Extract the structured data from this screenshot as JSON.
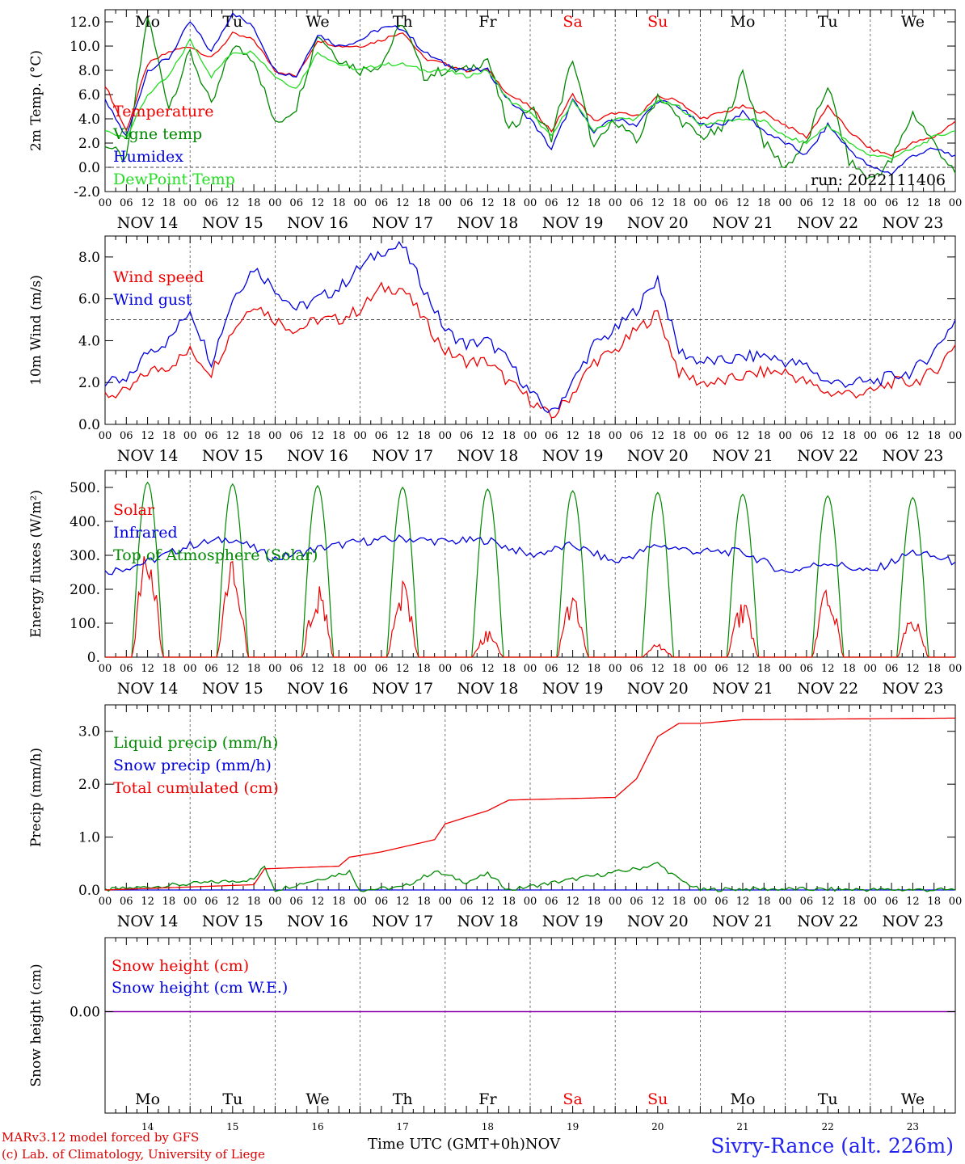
{
  "colors": {
    "red": "#ee0000",
    "green": "#008800",
    "blue": "#0000dd",
    "lightgreen": "#22dd22",
    "purple": "#8800aa",
    "footer_red": "#dd0000",
    "location_blue": "#2222ee"
  },
  "days": [
    "Mo",
    "Tu",
    "We",
    "Th",
    "Fr",
    "Sa",
    "Su",
    "Mo",
    "Tu",
    "We"
  ],
  "day_colors": [
    "black",
    "black",
    "black",
    "black",
    "black",
    "red",
    "red",
    "black",
    "black",
    "black"
  ],
  "dates": [
    "NOV 14",
    "NOV 15",
    "NOV 16",
    "NOV 17",
    "NOV 18",
    "NOV 19",
    "NOV 20",
    "NOV 21",
    "NOV 22",
    "NOV 23"
  ],
  "date_numbers": [
    "14",
    "15",
    "16",
    "17",
    "18",
    "19",
    "20",
    "21",
    "22",
    "23"
  ],
  "hour_ticks": [
    "00",
    "06",
    "12",
    "18"
  ],
  "final_tick": "00",
  "footer": {
    "model": "MARv3.12 model forced by GFS",
    "lab": "(c) Lab. of Climatology, University of Liege",
    "xlabel": "Time UTC (GMT+0h)",
    "month": "NOV",
    "location": "Sivry-Rance (alt. 226m)"
  },
  "chart_data": [
    {
      "type": "line",
      "ylabel": "2m Temp. (°C)",
      "ylim": [
        -2,
        13
      ],
      "yticks": [
        "-2.0",
        "0.0",
        "2.0",
        "4.0",
        "6.0",
        "8.0",
        "10.0",
        "12.0"
      ],
      "reference_line": 0,
      "annotation": "run: 2022111406",
      "x": [
        "11-14 00",
        "11-14 06",
        "11-14 12",
        "11-14 18",
        "11-15 00",
        "11-15 06",
        "11-15 12",
        "11-15 18",
        "11-16 00",
        "11-16 06",
        "11-16 12",
        "11-16 18",
        "11-17 00",
        "11-17 06",
        "11-17 12",
        "11-17 18",
        "11-18 00",
        "11-18 06",
        "11-18 12",
        "11-18 18",
        "11-19 00",
        "11-19 06",
        "11-19 12",
        "11-19 18",
        "11-20 00",
        "11-20 06",
        "11-20 12",
        "11-20 18",
        "11-21 00",
        "11-21 06",
        "11-21 12",
        "11-21 18",
        "11-22 00",
        "11-22 06",
        "11-22 12",
        "11-22 18",
        "11-23 00",
        "11-23 06",
        "11-23 12",
        "11-23 18",
        "11-24 00"
      ],
      "series": [
        {
          "name": "Temperature",
          "color": "red",
          "values": [
            6.8,
            3.0,
            8.5,
            9.5,
            10.0,
            9.0,
            11.0,
            10.5,
            8.0,
            7.5,
            10.5,
            10.0,
            10.0,
            10.5,
            11.2,
            9.0,
            8.5,
            8.0,
            8.0,
            6.0,
            5.0,
            3.0,
            6.0,
            3.8,
            4.5,
            4.2,
            5.8,
            5.5,
            4.0,
            4.5,
            5.0,
            4.5,
            3.5,
            2.5,
            5.0,
            3.0,
            1.5,
            1.0,
            2.0,
            2.5,
            3.8
          ]
        },
        {
          "name": "Vigne temp",
          "color": "green",
          "values": [
            2.0,
            0.5,
            12.5,
            5.0,
            9.5,
            5.0,
            10.0,
            9.0,
            3.5,
            5.0,
            11.0,
            9.0,
            8.0,
            8.5,
            12.0,
            7.5,
            8.0,
            8.0,
            9.0,
            3.0,
            5.0,
            2.5,
            9.0,
            1.5,
            4.0,
            2.0,
            6.0,
            4.0,
            2.5,
            3.0,
            7.8,
            2.0,
            0.0,
            2.0,
            6.8,
            0.5,
            -1.0,
            0.5,
            4.5,
            2.0,
            -0.5
          ]
        },
        {
          "name": "Humidex",
          "color": "blue",
          "values": [
            5.5,
            2.5,
            8.0,
            9.0,
            12.0,
            9.5,
            12.8,
            11.5,
            8.0,
            7.5,
            11.0,
            10.0,
            10.5,
            11.5,
            11.5,
            9.5,
            8.5,
            8.0,
            8.0,
            5.5,
            4.0,
            1.5,
            5.5,
            3.0,
            4.0,
            3.5,
            5.5,
            5.0,
            3.5,
            3.5,
            4.5,
            3.0,
            2.0,
            1.0,
            3.5,
            1.5,
            0.0,
            -0.5,
            1.0,
            1.5,
            1.0
          ]
        },
        {
          "name": "DewPoint Temp",
          "color": "lightgreen",
          "values": [
            3.0,
            2.5,
            6.0,
            7.5,
            10.5,
            7.5,
            9.5,
            9.5,
            7.5,
            6.5,
            9.5,
            8.5,
            8.0,
            8.5,
            8.5,
            8.0,
            8.0,
            7.5,
            8.0,
            5.5,
            4.5,
            2.5,
            5.5,
            3.0,
            4.0,
            4.0,
            5.5,
            5.0,
            3.5,
            3.8,
            4.0,
            3.8,
            2.5,
            2.0,
            3.5,
            2.0,
            1.0,
            0.8,
            1.5,
            2.5,
            3.0
          ]
        }
      ]
    },
    {
      "type": "line",
      "ylabel": "10m Wind (m/s)",
      "ylim": [
        0,
        9
      ],
      "yticks": [
        "0.0",
        "2.0",
        "4.0",
        "6.0",
        "8.0"
      ],
      "reference_line": 5,
      "x": [
        "11-14 00",
        "11-14 06",
        "11-14 12",
        "11-14 18",
        "11-15 00",
        "11-15 06",
        "11-15 12",
        "11-15 18",
        "11-16 00",
        "11-16 06",
        "11-16 12",
        "11-16 18",
        "11-17 00",
        "11-17 06",
        "11-17 12",
        "11-17 18",
        "11-18 00",
        "11-18 06",
        "11-18 12",
        "11-18 18",
        "11-19 00",
        "11-19 06",
        "11-19 12",
        "11-19 18",
        "11-20 00",
        "11-20 06",
        "11-20 12",
        "11-20 18",
        "11-21 00",
        "11-21 06",
        "11-21 12",
        "11-21 18",
        "11-22 00",
        "11-22 06",
        "11-22 12",
        "11-22 18",
        "11-23 00",
        "11-23 06",
        "11-23 12",
        "11-23 18",
        "11-24 00"
      ],
      "series": [
        {
          "name": "Wind speed",
          "color": "red",
          "values": [
            1.4,
            1.5,
            2.5,
            2.8,
            3.5,
            2.5,
            4.5,
            5.8,
            5.0,
            4.5,
            5.0,
            5.0,
            5.5,
            6.5,
            6.5,
            5.0,
            3.5,
            3.0,
            3.0,
            2.0,
            1.2,
            0.3,
            1.5,
            3.0,
            3.5,
            4.5,
            5.3,
            2.5,
            2.0,
            2.0,
            2.3,
            2.5,
            2.5,
            2.0,
            1.5,
            1.5,
            1.5,
            2.0,
            2.0,
            2.5,
            3.8
          ]
        },
        {
          "name": "Wind gust",
          "color": "blue",
          "values": [
            2.0,
            2.0,
            3.5,
            4.0,
            5.5,
            3.0,
            6.0,
            7.5,
            6.5,
            5.5,
            6.0,
            6.5,
            7.5,
            8.3,
            8.5,
            6.5,
            4.5,
            3.8,
            4.0,
            3.0,
            1.5,
            0.5,
            2.0,
            3.8,
            4.5,
            5.5,
            7.0,
            3.5,
            3.0,
            3.0,
            3.2,
            3.3,
            3.0,
            2.8,
            2.0,
            2.0,
            2.0,
            2.3,
            2.5,
            3.5,
            5.0
          ]
        }
      ]
    },
    {
      "type": "line",
      "ylabel": "Energy fluxes (W/m²)",
      "ylim": [
        0,
        550
      ],
      "yticks": [
        "0.",
        "100.",
        "200.",
        "300.",
        "400.",
        "500."
      ],
      "solar_noon_hour": 12,
      "series": [
        {
          "name": "Solar",
          "color": "red",
          "daily_peak": [
            330,
            290,
            220,
            230,
            80,
            190,
            40,
            170,
            205,
            120
          ]
        },
        {
          "name": "Infrared",
          "color": "blue",
          "x": [
            "11-14 00",
            "11-14 12",
            "11-15 00",
            "11-15 12",
            "11-16 00",
            "11-16 12",
            "11-17 00",
            "11-17 12",
            "11-18 00",
            "11-18 12",
            "11-19 00",
            "11-19 12",
            "11-20 00",
            "11-20 12",
            "11-21 00",
            "11-21 12",
            "11-22 00",
            "11-22 12",
            "11-23 00",
            "11-23 12",
            "11-24 00"
          ],
          "values": [
            250,
            280,
            330,
            350,
            290,
            320,
            340,
            350,
            340,
            345,
            300,
            330,
            280,
            330,
            310,
            310,
            250,
            280,
            250,
            310,
            280
          ]
        },
        {
          "name": "Top of Atmosphere (Solar)",
          "color": "green",
          "daily_peak": [
            515,
            510,
            505,
            500,
            495,
            490,
            485,
            480,
            475,
            470
          ]
        }
      ]
    },
    {
      "type": "line",
      "ylabel": "Precip (mm/h)",
      "ylim": [
        0,
        3.5
      ],
      "yticks": [
        "0.0",
        "1.0",
        "2.0",
        "3.0"
      ],
      "series": [
        {
          "name": "Liquid precip (mm/h)",
          "color": "green",
          "x": [
            "11-14 00",
            "11-15 18",
            "11-15 21",
            "11-16 00",
            "11-16 21",
            "11-17 00",
            "11-17 12",
            "11-17 21",
            "11-18 06",
            "11-18 12",
            "11-18 18",
            "11-20 06",
            "11-20 12",
            "11-20 18",
            "11-21 00",
            "11-21 12",
            "11-24 00"
          ],
          "values": [
            0,
            0.2,
            0.45,
            0,
            0.35,
            0,
            0.05,
            0.35,
            0.15,
            0.3,
            0,
            0.4,
            0.5,
            0.2,
            0,
            0.02,
            0
          ]
        },
        {
          "name": "Snow precip (mm/h)",
          "color": "blue",
          "x": [
            "11-14 00",
            "11-24 00"
          ],
          "values": [
            0,
            0
          ]
        },
        {
          "name": "Total cumulated (cm)",
          "color": "red",
          "x": [
            "11-14 00",
            "11-14 21",
            "11-15 18",
            "11-15 21",
            "11-16 18",
            "11-16 21",
            "11-17 06",
            "11-17 21",
            "11-18 00",
            "11-18 12",
            "11-18 18",
            "11-19 12",
            "11-20 00",
            "11-20 06",
            "11-20 12",
            "11-20 18",
            "11-21 00",
            "11-21 12",
            "11-24 00"
          ],
          "values": [
            0,
            0.05,
            0.1,
            0.4,
            0.45,
            0.62,
            0.72,
            0.95,
            1.25,
            1.5,
            1.7,
            1.73,
            1.75,
            2.1,
            2.9,
            3.15,
            3.15,
            3.22,
            3.25
          ]
        }
      ]
    },
    {
      "type": "line",
      "ylabel": "Snow height (cm)",
      "yticks": [
        "0.00"
      ],
      "series": [
        {
          "name": "Snow height (cm)",
          "color": "red",
          "x": [
            "11-14 00",
            "11-24 00"
          ],
          "values": [
            0,
            0
          ]
        },
        {
          "name": "Snow height (cm W.E.)",
          "color": "blue",
          "x": [
            "11-14 00",
            "11-24 00"
          ],
          "values": [
            0,
            0
          ]
        }
      ]
    }
  ]
}
